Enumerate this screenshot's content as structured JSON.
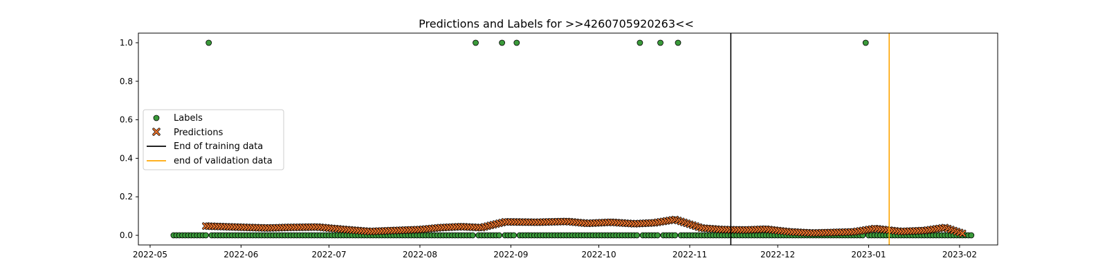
{
  "chart_data": {
    "type": "scatter",
    "title": "Predictions and Labels for >>4260705920263<<",
    "xlabel": "",
    "ylabel": "",
    "x_range": [
      "2022-04-27",
      "2023-02-14"
    ],
    "ylim": [
      -0.05,
      1.05
    ],
    "x_ticks": [
      "2022-05",
      "2022-06",
      "2022-07",
      "2022-08",
      "2022-09",
      "2022-10",
      "2022-11",
      "2022-12",
      "2023-01",
      "2023-02"
    ],
    "y_ticks": [
      "0.0",
      "0.2",
      "0.4",
      "0.6",
      "0.8",
      "1.0"
    ],
    "grid": false,
    "legend_position": "center-left",
    "date_range": {
      "start": "2022-05-09",
      "end": "2023-02-05"
    },
    "series": [
      {
        "name": "Labels",
        "marker": "circle",
        "color": "#3a9a3a",
        "edge_color": "#000000",
        "default_value": 0,
        "positive_dates": [
          "2022-05-21",
          "2022-08-20",
          "2022-08-29",
          "2022-09-03",
          "2022-10-15",
          "2022-10-22",
          "2022-10-28",
          "2022-12-31"
        ]
      },
      {
        "name": "Predictions",
        "marker": "x",
        "color": "#e8722c",
        "edge_color": "#000000",
        "start_date": "2022-05-20",
        "end_date": "2023-02-02",
        "anchor_dates": [
          "2022-05-20",
          "2022-06-01",
          "2022-06-10",
          "2022-06-17",
          "2022-06-27",
          "2022-07-05",
          "2022-07-15",
          "2022-07-23",
          "2022-08-01",
          "2022-08-08",
          "2022-08-15",
          "2022-08-22",
          "2022-08-30",
          "2022-09-10",
          "2022-09-20",
          "2022-09-27",
          "2022-10-05",
          "2022-10-13",
          "2022-10-20",
          "2022-10-27",
          "2022-11-05",
          "2022-11-12",
          "2022-11-20",
          "2022-11-27",
          "2022-12-05",
          "2022-12-13",
          "2022-12-20",
          "2022-12-27",
          "2023-01-03",
          "2023-01-12",
          "2023-01-20",
          "2023-01-27",
          "2023-02-02"
        ],
        "anchor_values": [
          0.048,
          0.042,
          0.038,
          0.041,
          0.043,
          0.032,
          0.02,
          0.025,
          0.03,
          0.04,
          0.045,
          0.04,
          0.07,
          0.068,
          0.072,
          0.062,
          0.068,
          0.06,
          0.065,
          0.082,
          0.038,
          0.03,
          0.028,
          0.032,
          0.018,
          0.012,
          0.015,
          0.018,
          0.035,
          0.02,
          0.025,
          0.04,
          0.01
        ]
      }
    ],
    "vertical_lines": [
      {
        "name": "End of training data",
        "date": "2022-11-15",
        "color": "#000000"
      },
      {
        "name": "end of validation data",
        "date": "2023-01-08",
        "color": "#ffa500"
      }
    ]
  }
}
